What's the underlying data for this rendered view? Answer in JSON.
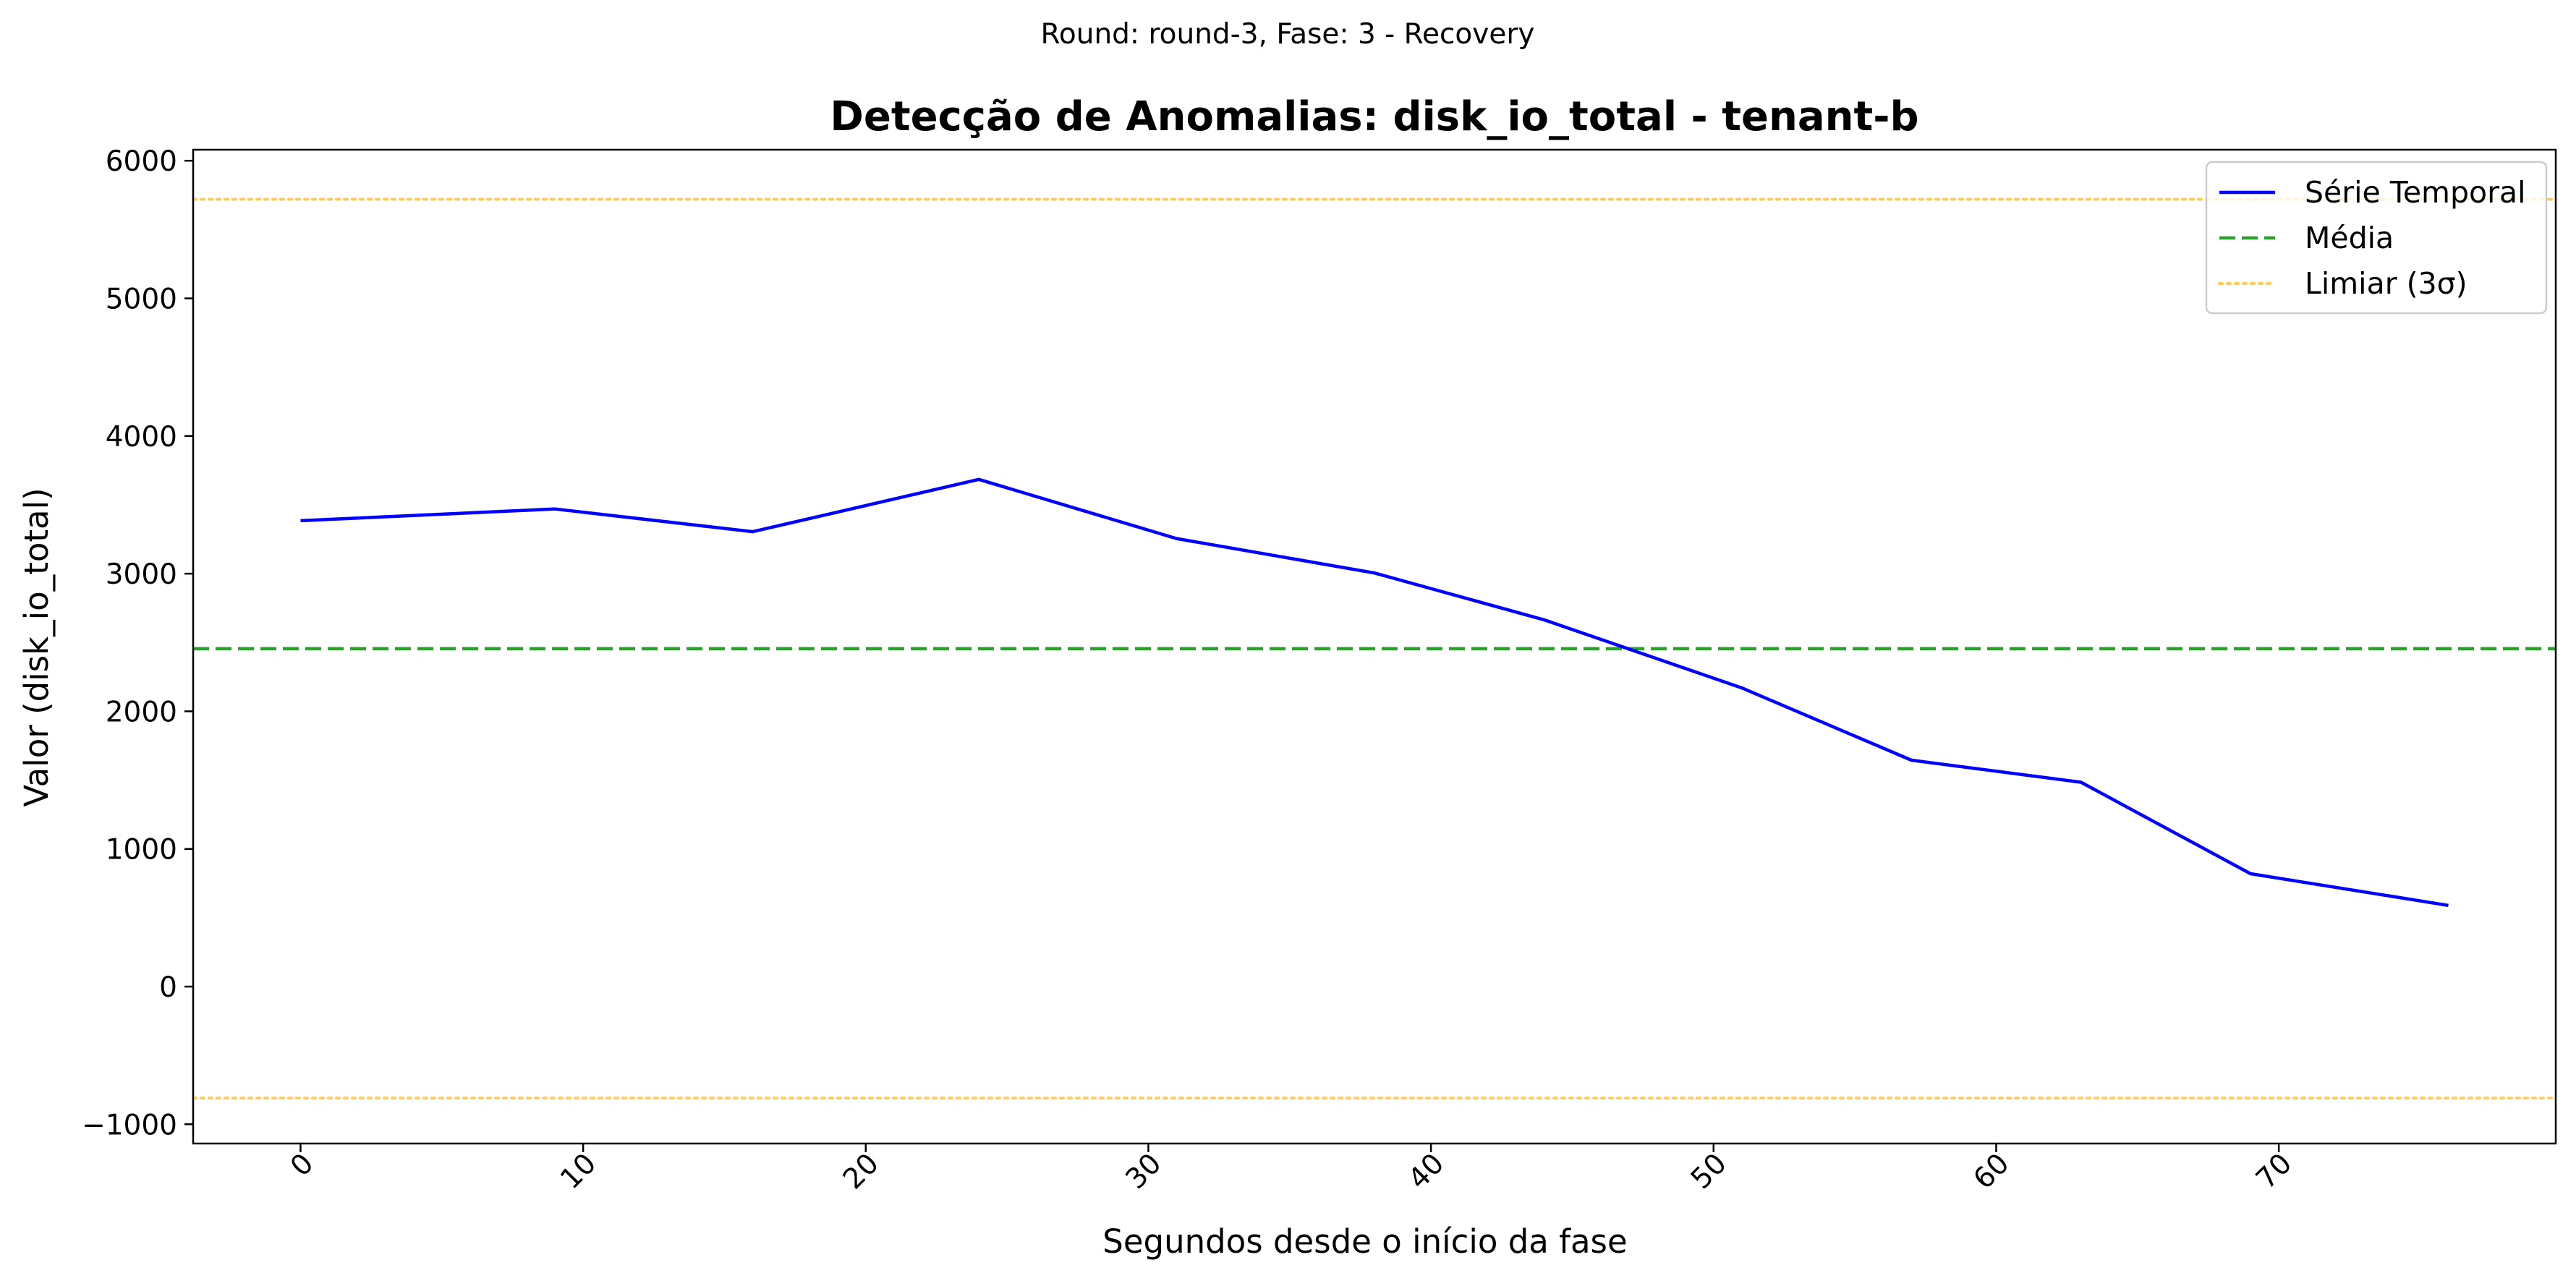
{
  "suptitle": "Round: round-3, Fase: 3 - Recovery",
  "chart_data": {
    "type": "line",
    "title": "Detecção de Anomalias: disk_io_total - tenant-b",
    "xlabel": "Segundos desde o início da fase",
    "ylabel": "Valor (disk_io_total)",
    "xlim": [
      -3.8,
      79.8
    ],
    "ylim": [
      -1140,
      6080
    ],
    "x_ticks": [
      0,
      10,
      20,
      30,
      40,
      50,
      60,
      70
    ],
    "x_tick_labels": [
      "0",
      "10",
      "20",
      "30",
      "40",
      "50",
      "60",
      "70"
    ],
    "y_ticks": [
      -1000,
      0,
      1000,
      2000,
      3000,
      4000,
      5000,
      6000
    ],
    "y_tick_labels": [
      "−1000",
      "0",
      "1000",
      "2000",
      "3000",
      "4000",
      "5000",
      "6000"
    ],
    "grid": false,
    "legend_position": "top-right",
    "series": [
      {
        "name": "Série Temporal",
        "style": "solid",
        "color": "#0000ff",
        "x": [
          0,
          9,
          16,
          24,
          31,
          38,
          44,
          51,
          57,
          63,
          69,
          76
        ],
        "y": [
          3385,
          3470,
          3305,
          3685,
          3255,
          3005,
          2665,
          2170,
          1645,
          1485,
          820,
          590
        ]
      }
    ],
    "reference_lines": [
      {
        "name": "Média",
        "y": 2455,
        "style": "dashed",
        "color": "#2ca02c"
      },
      {
        "name": "Limiar (3σ)",
        "y": 5720,
        "style": "dotted",
        "color": "#ffbf30"
      },
      {
        "name": "",
        "y": -810,
        "style": "dotted",
        "color": "#ffbf30"
      }
    ],
    "legend": [
      {
        "label": "Série Temporal",
        "style": "solid",
        "color": "#0000ff"
      },
      {
        "label": "Média",
        "style": "dashed",
        "color": "#2ca02c"
      },
      {
        "label": "Limiar (3σ)",
        "style": "dotted",
        "color": "#ffbf30"
      }
    ]
  }
}
